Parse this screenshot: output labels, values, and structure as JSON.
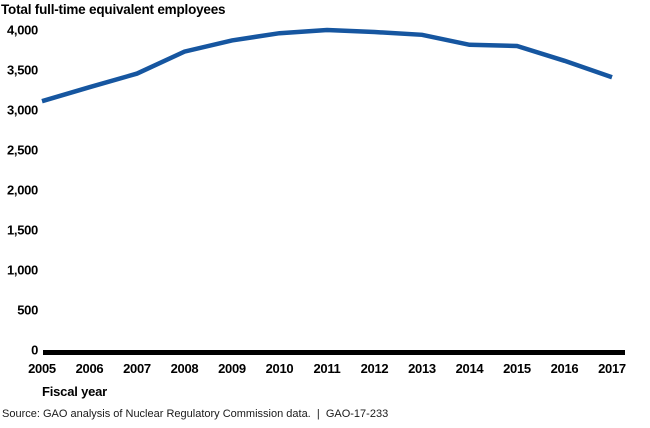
{
  "chart_data": {
    "type": "line",
    "title": "Total full-time equivalent employees",
    "xlabel": "Fiscal year",
    "ylabel": "",
    "categories": [
      2005,
      2006,
      2007,
      2008,
      2009,
      2010,
      2011,
      2012,
      2013,
      2014,
      2015,
      2016,
      2017
    ],
    "series": [
      {
        "name": "Total full-time equivalent employees",
        "values": [
          3110,
          3285,
          3455,
          3730,
          3870,
          3960,
          4000,
          3975,
          3940,
          3815,
          3800,
          3615,
          3410
        ]
      }
    ],
    "ylim": [
      0,
      4000
    ],
    "ytick_values": [
      0,
      500,
      1000,
      1500,
      2000,
      2500,
      3000,
      3500,
      4000
    ],
    "ytick_labels": [
      "0",
      "500",
      "1,000",
      "1,500",
      "2,000",
      "2,500",
      "3,000",
      "3,500",
      "4,000"
    ],
    "xtick_labels": [
      "2005",
      "2006",
      "2007",
      "2008",
      "2009",
      "2010",
      "2011",
      "2012",
      "2013",
      "2014",
      "2015",
      "2016",
      "2017"
    ],
    "grid": false,
    "legend_position": "none",
    "line_color": "#1656a0",
    "axis_color": "#000000",
    "text_color": "#000000"
  },
  "footer": {
    "source": "Source: GAO analysis of Nuclear Regulatory Commission data.  |  GAO-17-233"
  }
}
